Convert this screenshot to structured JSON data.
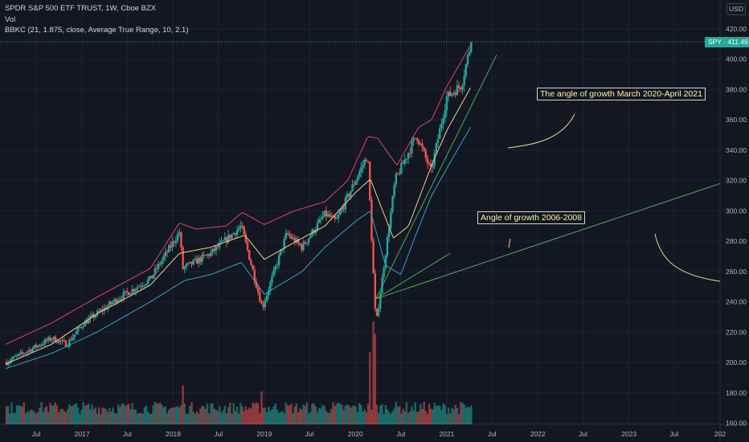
{
  "header": {
    "title": "SPDR S&P 500 ETF TRUST, 1W, Cboe BZX",
    "volume_label": "Vol",
    "indicator": "BBKC (21, 1.875, close, Average True Range, 10, 2.1)"
  },
  "currency_button": "USD",
  "last_price_tag": "SPY · 411.49",
  "annotations": {
    "growth_2020_2021": "The angle of growth March 2020-April 2021",
    "growth_2006_2008": "Angle of growth 2006-2008"
  },
  "colors": {
    "background": "#131722",
    "up": "#26a69a",
    "down": "#ef5350",
    "upper_band": "#e0455c",
    "basis": "#e8d589",
    "lower_band": "#2aa7c9",
    "drawing_line": "#4caf50",
    "drawing_curve": "#e8d589"
  },
  "chart_data": {
    "type": "candlestick",
    "symbol": "SPY",
    "interval": "1W",
    "exchange": "Cboe BZX",
    "ylim": [
      158,
      425
    ],
    "y_ticks": [
      160,
      180,
      200,
      220,
      240,
      260,
      280,
      300,
      320,
      340,
      360,
      380,
      400,
      420
    ],
    "x_ticks": [
      "Jul",
      "2017",
      "Jul",
      "2018",
      "Jul",
      "2019",
      "Jul",
      "2020",
      "Jul",
      "2021",
      "Jul",
      "2022",
      "Jul",
      "2023",
      "Jul",
      "202"
    ],
    "x_tick_dates": [
      "2016-07-01",
      "2017-01-01",
      "2017-07-01",
      "2018-01-01",
      "2018-07-01",
      "2019-01-01",
      "2019-07-01",
      "2020-01-01",
      "2020-07-01",
      "2021-01-01",
      "2021-07-01",
      "2022-01-01",
      "2022-07-01",
      "2023-01-01",
      "2023-07-01",
      "2024-01-01"
    ],
    "last_price": 411.49,
    "close_anchors": [
      [
        "2016-03-01",
        200
      ],
      [
        "2016-06-01",
        208
      ],
      [
        "2016-09-01",
        216
      ],
      [
        "2016-11-01",
        212
      ],
      [
        "2017-01-01",
        225
      ],
      [
        "2017-06-01",
        243
      ],
      [
        "2017-10-01",
        255
      ],
      [
        "2018-01-26",
        286
      ],
      [
        "2018-02-09",
        262
      ],
      [
        "2018-06-01",
        272
      ],
      [
        "2018-10-01",
        290
      ],
      [
        "2018-12-24",
        236
      ],
      [
        "2019-04-01",
        285
      ],
      [
        "2019-06-01",
        276
      ],
      [
        "2019-09-01",
        298
      ],
      [
        "2019-10-15",
        293
      ],
      [
        "2020-02-19",
        337
      ],
      [
        "2020-03-23",
        224
      ],
      [
        "2020-06-08",
        320
      ],
      [
        "2020-09-02",
        350
      ],
      [
        "2020-10-30",
        326
      ],
      [
        "2021-01-01",
        375
      ],
      [
        "2021-03-01",
        383
      ],
      [
        "2021-04-09",
        411.49
      ]
    ],
    "series": [
      {
        "name": "upper band",
        "points": [
          [
            "2016-03-01",
            212
          ],
          [
            "2016-09-01",
            226
          ],
          [
            "2017-03-01",
            243
          ],
          [
            "2017-10-01",
            262
          ],
          [
            "2018-01-26",
            292
          ],
          [
            "2018-04-01",
            288
          ],
          [
            "2018-08-01",
            290
          ],
          [
            "2018-10-05",
            299
          ],
          [
            "2019-01-01",
            291
          ],
          [
            "2019-05-01",
            300
          ],
          [
            "2019-09-01",
            306
          ],
          [
            "2019-12-01",
            320
          ],
          [
            "2020-02-20",
            349
          ],
          [
            "2020-03-30",
            348
          ],
          [
            "2020-06-15",
            330
          ],
          [
            "2020-09-10",
            355
          ],
          [
            "2020-11-01",
            360
          ],
          [
            "2021-01-01",
            382
          ],
          [
            "2021-04-09",
            410
          ]
        ]
      },
      {
        "name": "basis",
        "points": [
          [
            "2016-03-01",
            199
          ],
          [
            "2016-09-01",
            212
          ],
          [
            "2017-03-01",
            232
          ],
          [
            "2017-10-01",
            251
          ],
          [
            "2018-01-26",
            272
          ],
          [
            "2018-06-01",
            276
          ],
          [
            "2018-10-15",
            284
          ],
          [
            "2019-01-01",
            268
          ],
          [
            "2019-06-01",
            282
          ],
          [
            "2019-09-01",
            290
          ],
          [
            "2020-01-01",
            312
          ],
          [
            "2020-03-01",
            321
          ],
          [
            "2020-06-01",
            282
          ],
          [
            "2020-08-01",
            290
          ],
          [
            "2020-11-01",
            330
          ],
          [
            "2021-01-01",
            353
          ],
          [
            "2021-04-09",
            382
          ]
        ]
      },
      {
        "name": "lower band",
        "points": [
          [
            "2016-03-01",
            196
          ],
          [
            "2016-09-01",
            206
          ],
          [
            "2017-03-01",
            220
          ],
          [
            "2017-10-01",
            240
          ],
          [
            "2018-02-15",
            254
          ],
          [
            "2018-06-01",
            258
          ],
          [
            "2018-10-01",
            266
          ],
          [
            "2019-01-01",
            245
          ],
          [
            "2019-06-01",
            260
          ],
          [
            "2019-09-01",
            276
          ],
          [
            "2020-01-01",
            293
          ],
          [
            "2020-03-01",
            300
          ],
          [
            "2020-05-01",
            264
          ],
          [
            "2020-07-01",
            258
          ],
          [
            "2020-09-01",
            285
          ],
          [
            "2020-11-01",
            310
          ],
          [
            "2021-01-01",
            328
          ],
          [
            "2021-04-09",
            356
          ]
        ]
      }
    ],
    "volume_spikes": [
      [
        "2018-02-09",
        0.38
      ],
      [
        "2018-12-21",
        0.32
      ],
      [
        "2020-03-13",
        1.0
      ],
      [
        "2020-03-20",
        0.88
      ],
      [
        "2020-02-28",
        0.7
      ]
    ],
    "drawings": [
      {
        "type": "trend-line",
        "from": [
          "2020-03-23",
          242
        ],
        "to": [
          "2021-07-20",
          403
        ]
      },
      {
        "type": "trend-line",
        "from": [
          "2020-03-23",
          242
        ],
        "to": [
          "2024-01-01",
          318
        ]
      },
      {
        "type": "trend-line",
        "from": [
          "2020-03-23",
          242
        ],
        "to": [
          "2021-01-15",
          272
        ]
      }
    ]
  }
}
